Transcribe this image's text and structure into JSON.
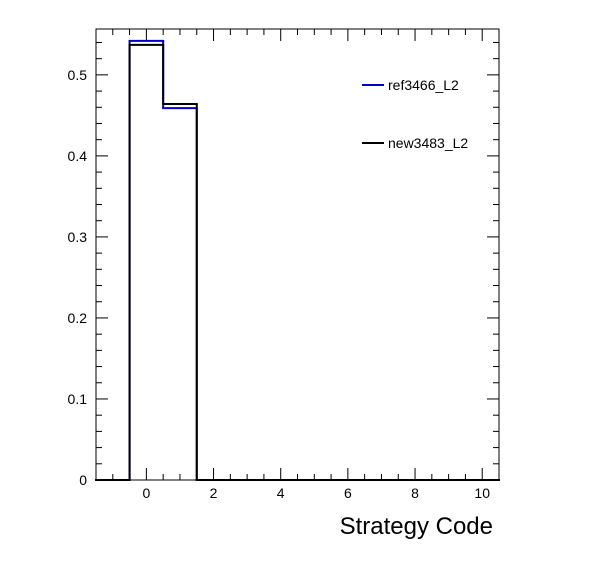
{
  "chart_data": {
    "type": "step",
    "xlabel": "Strategy Code",
    "ylabel": "",
    "xlim": [
      -1.5,
      10.5
    ],
    "ylim": [
      0,
      0.5566
    ],
    "grid": false,
    "legend_position": "top-right",
    "x_ticks": [
      0,
      2,
      4,
      6,
      8,
      10
    ],
    "x_tick_labels": [
      "0",
      "2",
      "4",
      "6",
      "8",
      "10"
    ],
    "y_ticks": [
      0,
      0.1,
      0.2,
      0.3,
      0.4,
      0.5
    ],
    "y_tick_labels": [
      "0",
      "0.1",
      "0.2",
      "0.3",
      "0.4",
      "0.5"
    ],
    "bin_edges": [
      -1.5,
      -0.5,
      0.5,
      1.5,
      2.5,
      3.5,
      4.5,
      5.5,
      6.5,
      7.5,
      8.5,
      9.5,
      10.5
    ],
    "series": [
      {
        "name": "ref3466_L2",
        "color": "#0000cc",
        "values": [
          0,
          0.542,
          0.459,
          0,
          0,
          0,
          0,
          0,
          0,
          0,
          0,
          0
        ]
      },
      {
        "name": "new3483_L2",
        "color": "#000000",
        "values": [
          0,
          0.537,
          0.464,
          0,
          0,
          0,
          0,
          0,
          0,
          0,
          0,
          0
        ]
      }
    ]
  }
}
